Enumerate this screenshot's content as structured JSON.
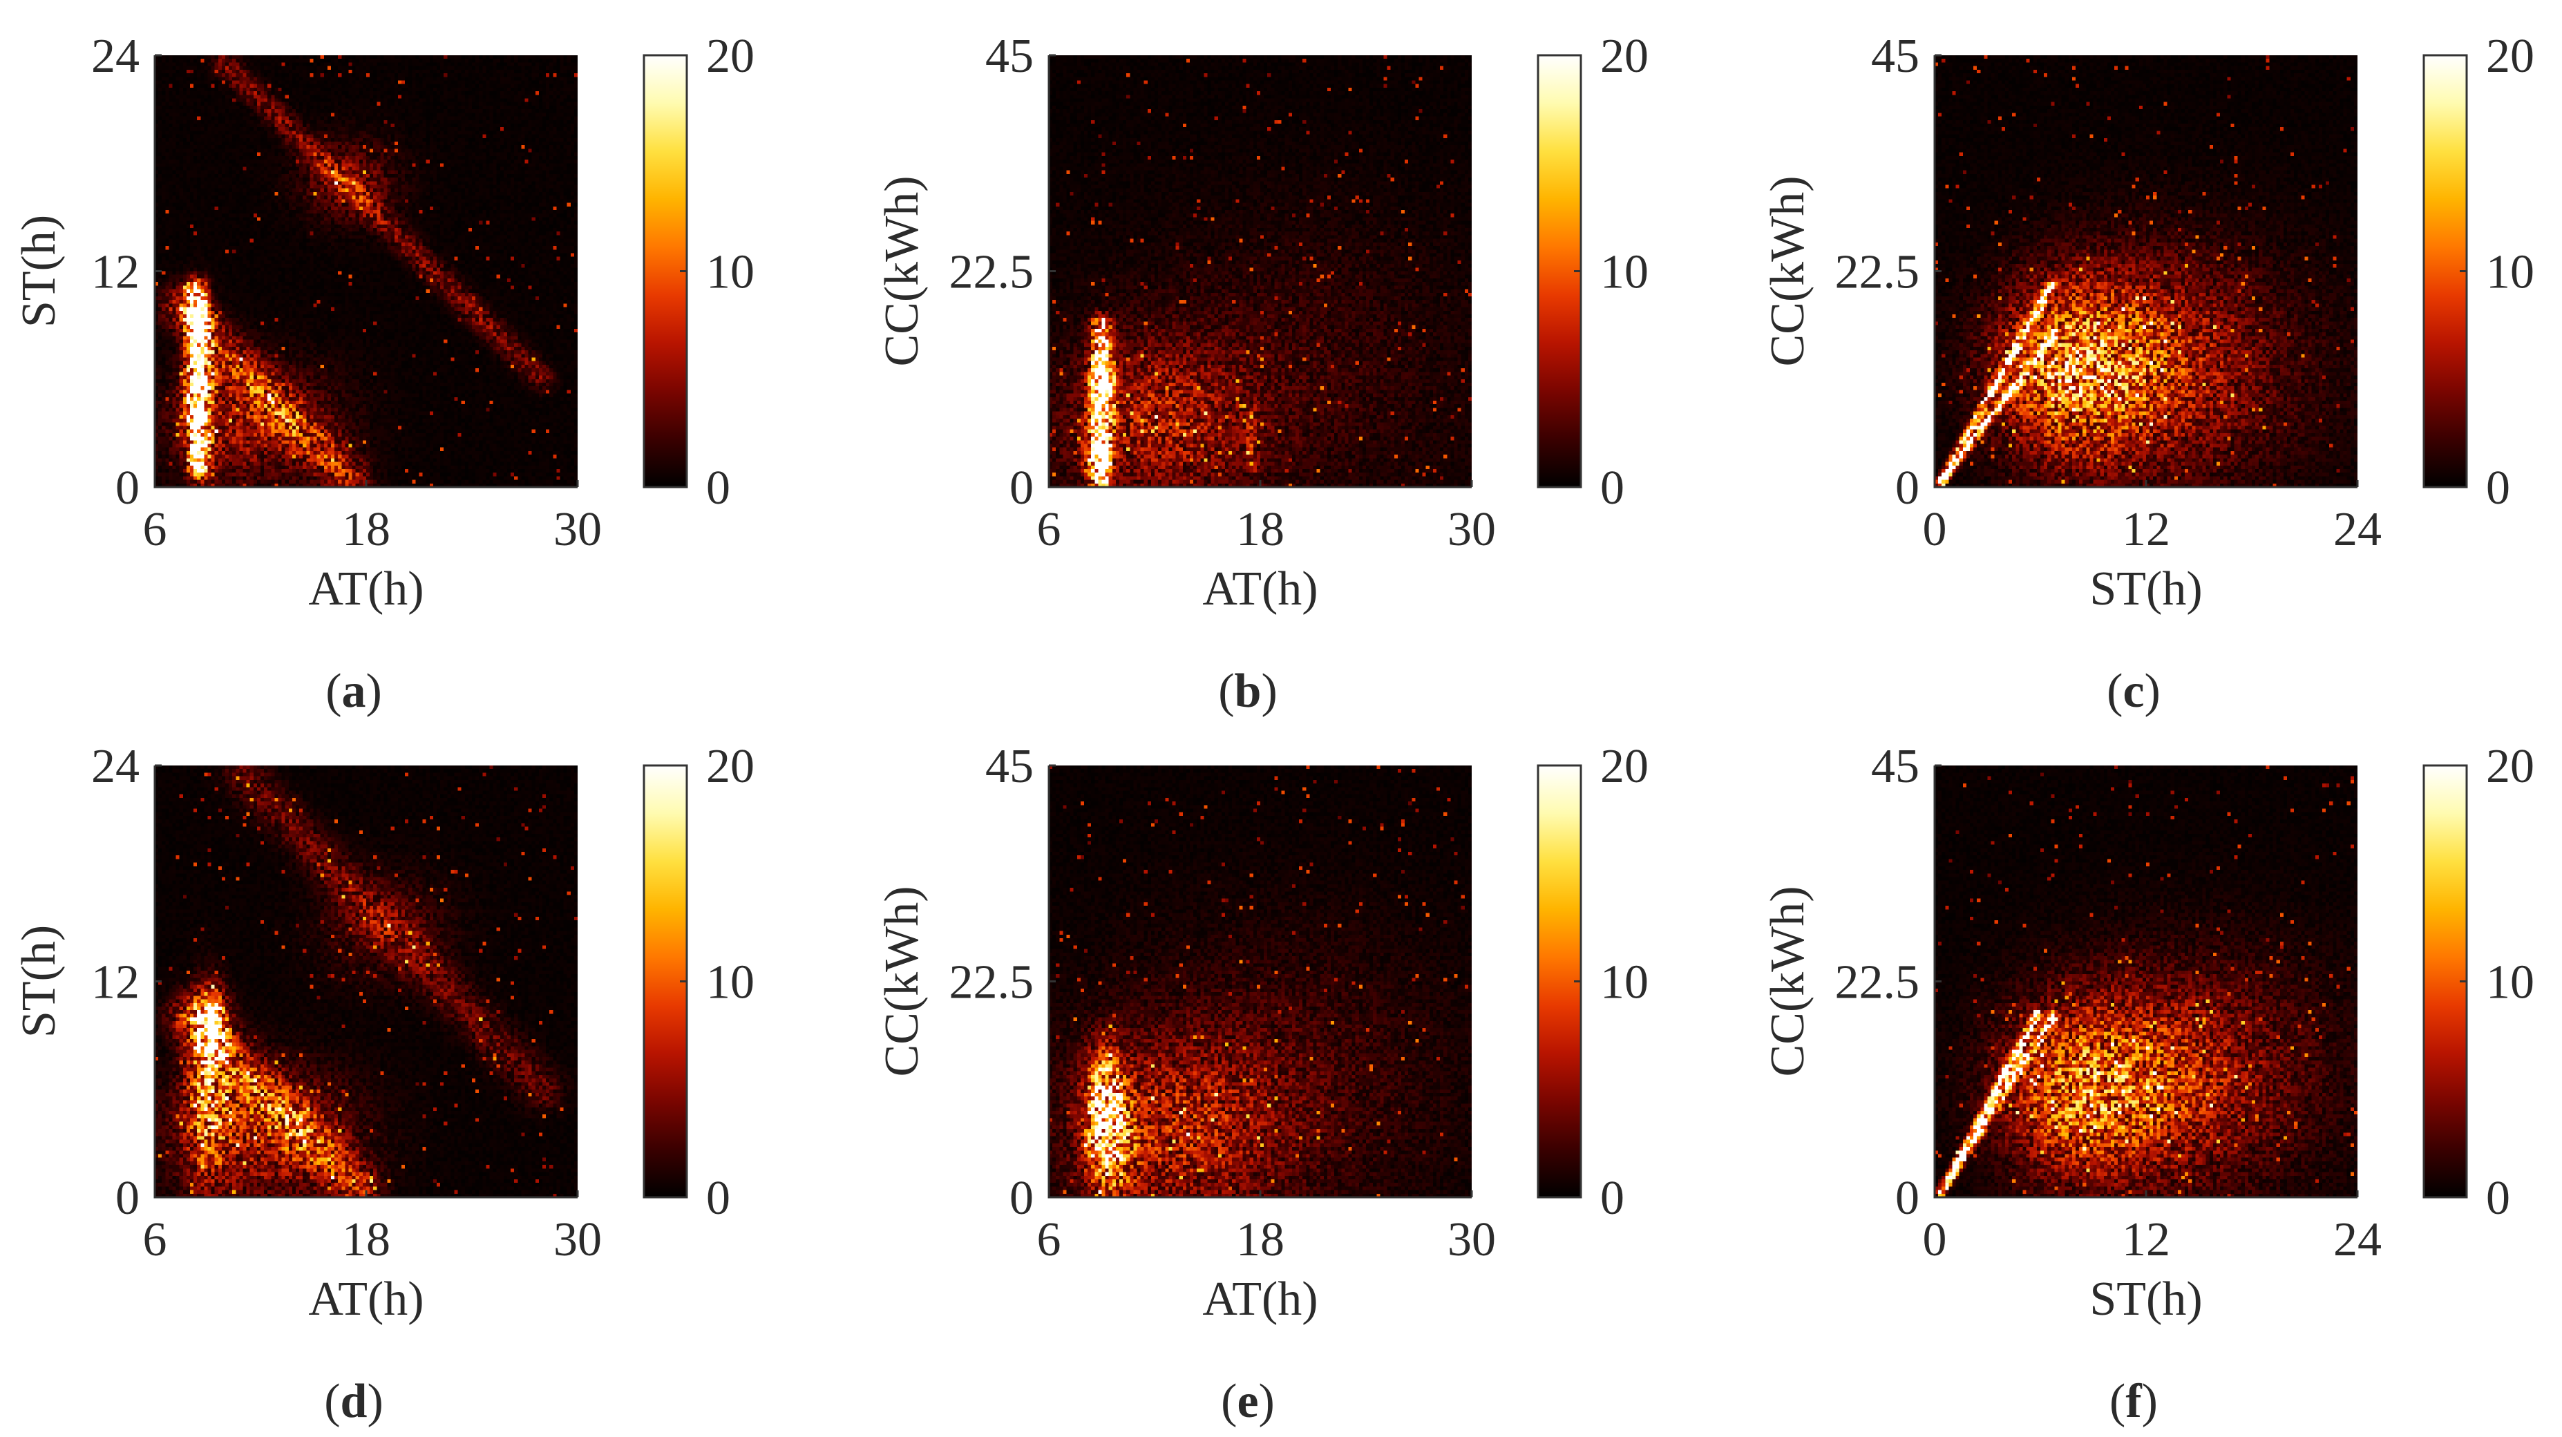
{
  "figure": {
    "type": "multi-panel heatmap figure",
    "colormap": {
      "name": "hot",
      "stops": [
        "#000000",
        "#3a0000",
        "#7a0500",
        "#b81400",
        "#e83a00",
        "#ff7800",
        "#ffb400",
        "#ffe040",
        "#fffbb0",
        "#ffffff"
      ]
    },
    "background_color": "#ffffff",
    "text_color": "#2b2b2b"
  },
  "chart_data": [
    {
      "type": "heatmap",
      "panel": "a",
      "label": "a",
      "xlabel": "AT(h)",
      "ylabel": "ST(h)",
      "xlim": [
        6,
        30
      ],
      "ylim": [
        0,
        24
      ],
      "x_ticks": [
        "6",
        "18",
        "30"
      ],
      "y_ticks": [
        "0",
        "12",
        "24"
      ],
      "colorbar": {
        "min": 0,
        "max": 20,
        "ticks": [
          "0",
          "10",
          "20"
        ]
      },
      "features": [
        {
          "kind": "line",
          "from": [
            8.5,
            1
          ],
          "to": [
            8.3,
            11
          ],
          "width": 0.7,
          "peak": 17
        },
        {
          "kind": "blob",
          "x": 8.5,
          "y": 9.5,
          "sx": 0.35,
          "sy": 1.0,
          "peak": 20
        },
        {
          "kind": "blob",
          "x": 8.6,
          "y": 5,
          "sx": 0.6,
          "sy": 2.5,
          "peak": 11
        },
        {
          "kind": "line",
          "from": [
            7.5,
            10
          ],
          "to": [
            17,
            0.5
          ],
          "width": 1.6,
          "peak": 6
        },
        {
          "kind": "blob",
          "x": 11.5,
          "y": 3.5,
          "sx": 3.2,
          "sy": 2.2,
          "peak": 5
        },
        {
          "kind": "line",
          "from": [
            10,
            23.5
          ],
          "to": [
            28,
            6
          ],
          "width": 0.9,
          "peak": 4
        },
        {
          "kind": "blob",
          "x": 17,
          "y": 17,
          "sx": 1.8,
          "sy": 1.5,
          "peak": 4
        }
      ]
    },
    {
      "type": "heatmap",
      "panel": "b",
      "label": "b",
      "xlabel": "AT(h)",
      "ylabel": "CC(kWh)",
      "xlim": [
        6,
        30
      ],
      "ylim": [
        0,
        45
      ],
      "x_ticks": [
        "6",
        "18",
        "30"
      ],
      "y_ticks": [
        "0",
        "22.5",
        "45"
      ],
      "colorbar": {
        "min": 0,
        "max": 20,
        "ticks": [
          "0",
          "10",
          "20"
        ]
      },
      "features": [
        {
          "kind": "line",
          "from": [
            9,
            1
          ],
          "to": [
            9,
            17
          ],
          "width": 0.7,
          "peak": 16
        },
        {
          "kind": "blob",
          "x": 9.0,
          "y": 10,
          "sx": 0.4,
          "sy": 2.5,
          "peak": 20
        },
        {
          "kind": "blob",
          "x": 8.8,
          "y": 3,
          "sx": 0.5,
          "sy": 2,
          "peak": 13
        },
        {
          "kind": "blob",
          "x": 12,
          "y": 7,
          "sx": 3.8,
          "sy": 6,
          "peak": 5
        },
        {
          "kind": "line",
          "from": [
            17.5,
            2
          ],
          "to": [
            17.5,
            8
          ],
          "width": 0.4,
          "peak": 5
        },
        {
          "kind": "blob",
          "x": 20,
          "y": 12,
          "sx": 7,
          "sy": 11,
          "peak": 1.6
        }
      ]
    },
    {
      "type": "heatmap",
      "panel": "c",
      "label": "c",
      "xlabel": "ST(h)",
      "ylabel": "CC(kWh)",
      "xlim": [
        0,
        24
      ],
      "ylim": [
        0,
        45
      ],
      "x_ticks": [
        "0",
        "12",
        "24"
      ],
      "y_ticks": [
        "0",
        "22.5",
        "45"
      ],
      "colorbar": {
        "min": 0,
        "max": 20,
        "ticks": [
          "0",
          "10",
          "20"
        ]
      },
      "features": [
        {
          "kind": "line",
          "from": [
            0.4,
            0.6
          ],
          "to": [
            6.6,
            21
          ],
          "width": 0.3,
          "peak": 20
        },
        {
          "kind": "line",
          "from": [
            0.4,
            0.6
          ],
          "to": [
            6.8,
            16
          ],
          "width": 0.3,
          "peak": 17
        },
        {
          "kind": "blob",
          "x": 7.5,
          "y": 12,
          "sx": 2.8,
          "sy": 6,
          "peak": 8
        },
        {
          "kind": "blob",
          "x": 11,
          "y": 13,
          "sx": 4,
          "sy": 7,
          "peak": 5
        },
        {
          "kind": "blob",
          "x": 15,
          "y": 12,
          "sx": 5.5,
          "sy": 9,
          "peak": 2.5
        }
      ]
    },
    {
      "type": "heatmap",
      "panel": "d",
      "label": "d",
      "xlabel": "AT(h)",
      "ylabel": "ST(h)",
      "xlim": [
        6,
        30
      ],
      "ylim": [
        0,
        24
      ],
      "x_ticks": [
        "6",
        "18",
        "30"
      ],
      "y_ticks": [
        "0",
        "12",
        "24"
      ],
      "colorbar": {
        "min": 0,
        "max": 20,
        "ticks": [
          "0",
          "10",
          "20"
        ]
      },
      "features": [
        {
          "kind": "blob",
          "x": 9.2,
          "y": 9.5,
          "sx": 0.6,
          "sy": 1.2,
          "peak": 17
        },
        {
          "kind": "blob",
          "x": 9.0,
          "y": 6,
          "sx": 0.8,
          "sy": 3,
          "peak": 10
        },
        {
          "kind": "line",
          "from": [
            8,
            10
          ],
          "to": [
            17.5,
            0.5
          ],
          "width": 1.8,
          "peak": 6
        },
        {
          "kind": "blob",
          "x": 12,
          "y": 3.5,
          "sx": 3.5,
          "sy": 2.5,
          "peak": 6
        },
        {
          "kind": "line",
          "from": [
            11,
            23.5
          ],
          "to": [
            28,
            6
          ],
          "width": 1.6,
          "peak": 3
        },
        {
          "kind": "blob",
          "x": 19,
          "y": 15,
          "sx": 2.5,
          "sy": 2,
          "peak": 2.5
        }
      ]
    },
    {
      "type": "heatmap",
      "panel": "e",
      "label": "e",
      "xlabel": "AT(h)",
      "ylabel": "CC(kWh)",
      "xlim": [
        6,
        30
      ],
      "ylim": [
        0,
        45
      ],
      "x_ticks": [
        "6",
        "18",
        "30"
      ],
      "y_ticks": [
        "0",
        "22.5",
        "45"
      ],
      "colorbar": {
        "min": 0,
        "max": 20,
        "ticks": [
          "0",
          "10",
          "20"
        ]
      },
      "features": [
        {
          "kind": "blob",
          "x": 9.2,
          "y": 10,
          "sx": 0.7,
          "sy": 3.5,
          "peak": 13
        },
        {
          "kind": "blob",
          "x": 9.5,
          "y": 5,
          "sx": 0.9,
          "sy": 4,
          "peak": 9
        },
        {
          "kind": "blob",
          "x": 13,
          "y": 7,
          "sx": 4.2,
          "sy": 6.5,
          "peak": 5
        },
        {
          "kind": "blob",
          "x": 19,
          "y": 12,
          "sx": 7,
          "sy": 11,
          "peak": 2
        }
      ]
    },
    {
      "type": "heatmap",
      "panel": "f",
      "label": "f",
      "xlabel": "ST(h)",
      "ylabel": "CC(kWh)",
      "xlim": [
        0,
        24
      ],
      "ylim": [
        0,
        45
      ],
      "x_ticks": [
        "0",
        "12",
        "24"
      ],
      "y_ticks": [
        "0",
        "22.5",
        "45"
      ],
      "colorbar": {
        "min": 0,
        "max": 20,
        "ticks": [
          "0",
          "10",
          "20"
        ]
      },
      "features": [
        {
          "kind": "line",
          "from": [
            0.4,
            0.6
          ],
          "to": [
            5.8,
            19
          ],
          "width": 0.3,
          "peak": 20
        },
        {
          "kind": "line",
          "from": [
            0.4,
            0.6
          ],
          "to": [
            6.8,
            19
          ],
          "width": 0.3,
          "peak": 17
        },
        {
          "kind": "blob",
          "x": 8,
          "y": 11,
          "sx": 3,
          "sy": 6,
          "peak": 7
        },
        {
          "kind": "blob",
          "x": 12,
          "y": 12,
          "sx": 4.2,
          "sy": 7,
          "peak": 4.5
        },
        {
          "kind": "blob",
          "x": 16,
          "y": 13,
          "sx": 5.5,
          "sy": 9,
          "peak": 2.5
        }
      ]
    }
  ]
}
